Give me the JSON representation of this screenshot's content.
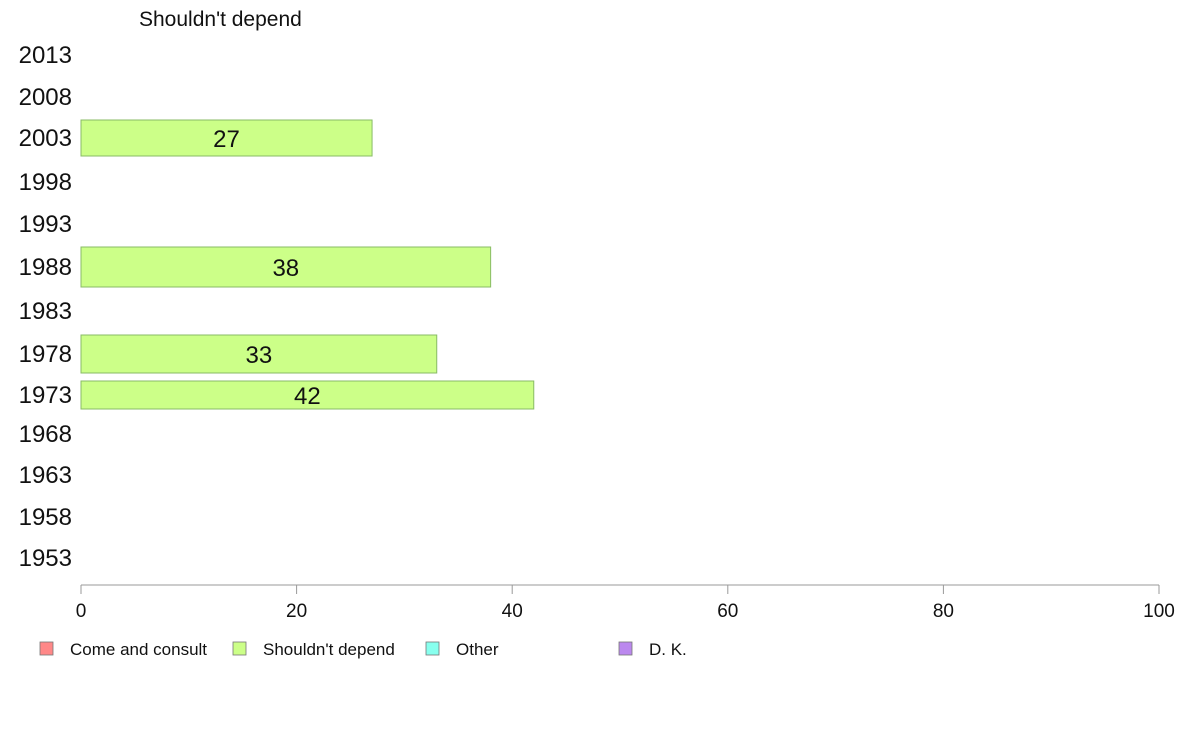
{
  "chart_data": {
    "type": "bar",
    "orientation": "horizontal",
    "title": "Shouldn't depend",
    "categories": [
      "2013",
      "2008",
      "2003",
      "1998",
      "1993",
      "1988",
      "1983",
      "1978",
      "1973",
      "1968",
      "1963",
      "1958",
      "1953"
    ],
    "series": [
      {
        "name": "Shouldn't depend",
        "color": "#ccff88",
        "values": [
          null,
          null,
          27,
          null,
          null,
          38,
          null,
          33,
          42,
          null,
          null,
          null,
          null
        ]
      }
    ],
    "xlim": [
      0,
      100
    ],
    "xticks": [
      0,
      20,
      40,
      60,
      80,
      100
    ],
    "xlabel": "",
    "ylabel": "",
    "grid": false,
    "legend": {
      "position": "bottom",
      "entries": [
        {
          "label": "Come and consult",
          "color": "#ff8888"
        },
        {
          "label": "Shouldn't depend",
          "color": "#ccff88"
        },
        {
          "label": "Other",
          "color": "#88ffee"
        },
        {
          "label": "D. K.",
          "color": "#bb88ee"
        }
      ]
    }
  }
}
